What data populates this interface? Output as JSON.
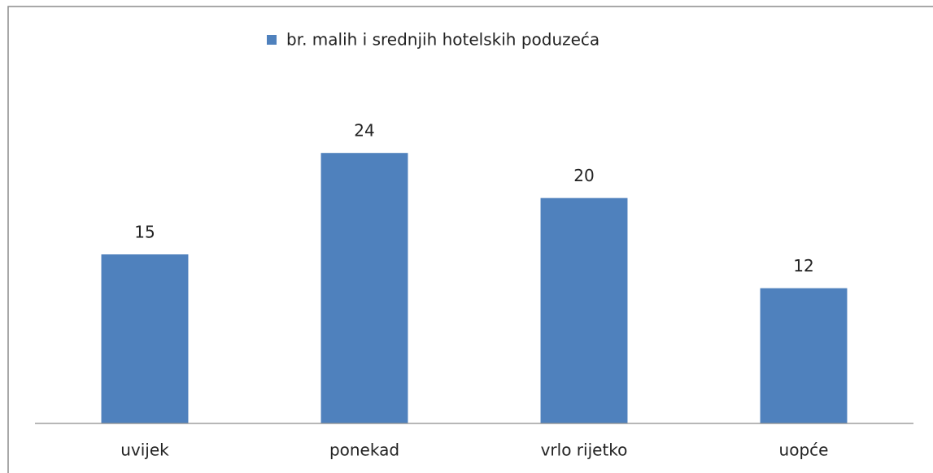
{
  "chart_data": {
    "type": "bar",
    "legend": "top",
    "series": [
      {
        "name": "br. malih i srednjih hotelskih poduzeća",
        "color": "#4f81bd",
        "values": [
          15,
          24,
          20,
          12
        ]
      }
    ],
    "categories": [
      "uvijek",
      "ponekad",
      "vrlo rijetko",
      "uopće"
    ],
    "ylim": [
      0,
      30
    ]
  }
}
